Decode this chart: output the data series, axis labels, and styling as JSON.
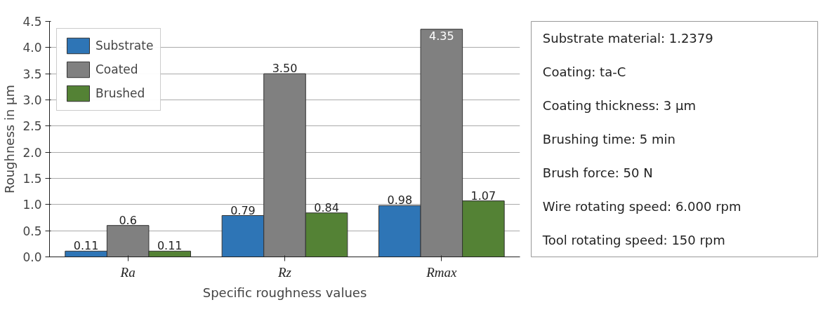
{
  "chart_data": [
    {
      "type": "bar",
      "xlabel": "Specific roughness values",
      "ylabel": "Roughness in µm",
      "categories": [
        "Ra",
        "Rz",
        "Rmax"
      ],
      "series": [
        {
          "name": "Substrate",
          "color": "#2e75b6",
          "values": [
            0.11,
            0.79,
            0.98
          ]
        },
        {
          "name": "Coated",
          "color": "#808080",
          "values": [
            0.6,
            3.5,
            4.35
          ]
        },
        {
          "name": "Brushed",
          "color": "#548235",
          "values": [
            0.11,
            0.84,
            1.07
          ]
        }
      ],
      "value_labels": [
        [
          "0.11",
          "0.79",
          "0.98"
        ],
        [
          "0.6",
          "3.50",
          "4.35"
        ],
        [
          "0.11",
          "0.84",
          "1.07"
        ]
      ],
      "ylim": [
        0,
        4.5
      ],
      "yticks": [
        {
          "value": 0,
          "label": "0.0"
        },
        {
          "value": 0.5,
          "label": "0.5"
        },
        {
          "value": 1,
          "label": "1.0"
        },
        {
          "value": 1.5,
          "label": "1.5"
        },
        {
          "value": 2,
          "label": "2.0"
        },
        {
          "value": 2.5,
          "label": "2.5"
        },
        {
          "value": 3,
          "label": "3.0"
        },
        {
          "value": 3.5,
          "label": "3.5"
        },
        {
          "value": 4,
          "label": "4.0"
        },
        {
          "value": 4.5,
          "label": "4.5"
        }
      ],
      "grid": "y",
      "legend": "top left"
    },
    {
      "type": "other",
      "annotations": [
        "Substrate material: 1.2379",
        "Coating: ta-C",
        "Coating thickness: 3 µm",
        "Brushing time: 5 min",
        "Brush force: 50 N",
        "Wire rotating speed: 6.000 rpm",
        "Tool rotating speed: 150 rpm"
      ]
    }
  ]
}
